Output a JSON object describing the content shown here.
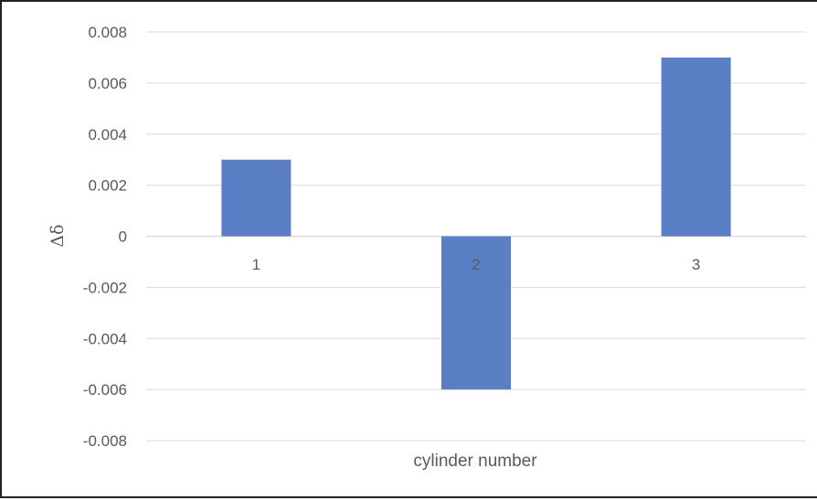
{
  "chart_data": {
    "type": "bar",
    "categories": [
      "1",
      "2",
      "3"
    ],
    "series": [
      {
        "values": [
          0.003,
          -0.006,
          0.007
        ],
        "color": "#5B7FC4"
      }
    ],
    "xlabel": "cylinder number",
    "ylabel": "Δδ",
    "ylim": [
      -0.008,
      0.008
    ],
    "yticks": [
      0.008,
      0.006,
      0.004,
      0.002,
      0,
      -0.002,
      -0.004,
      -0.006,
      -0.008
    ],
    "ytick_labels": [
      "0.008",
      "0.006",
      "0.004",
      "0.002",
      "0",
      "-0.002",
      "-0.004",
      "-0.006",
      "-0.008"
    ],
    "grid": true,
    "grid_color": "#D9D9D9",
    "legend": "none"
  }
}
